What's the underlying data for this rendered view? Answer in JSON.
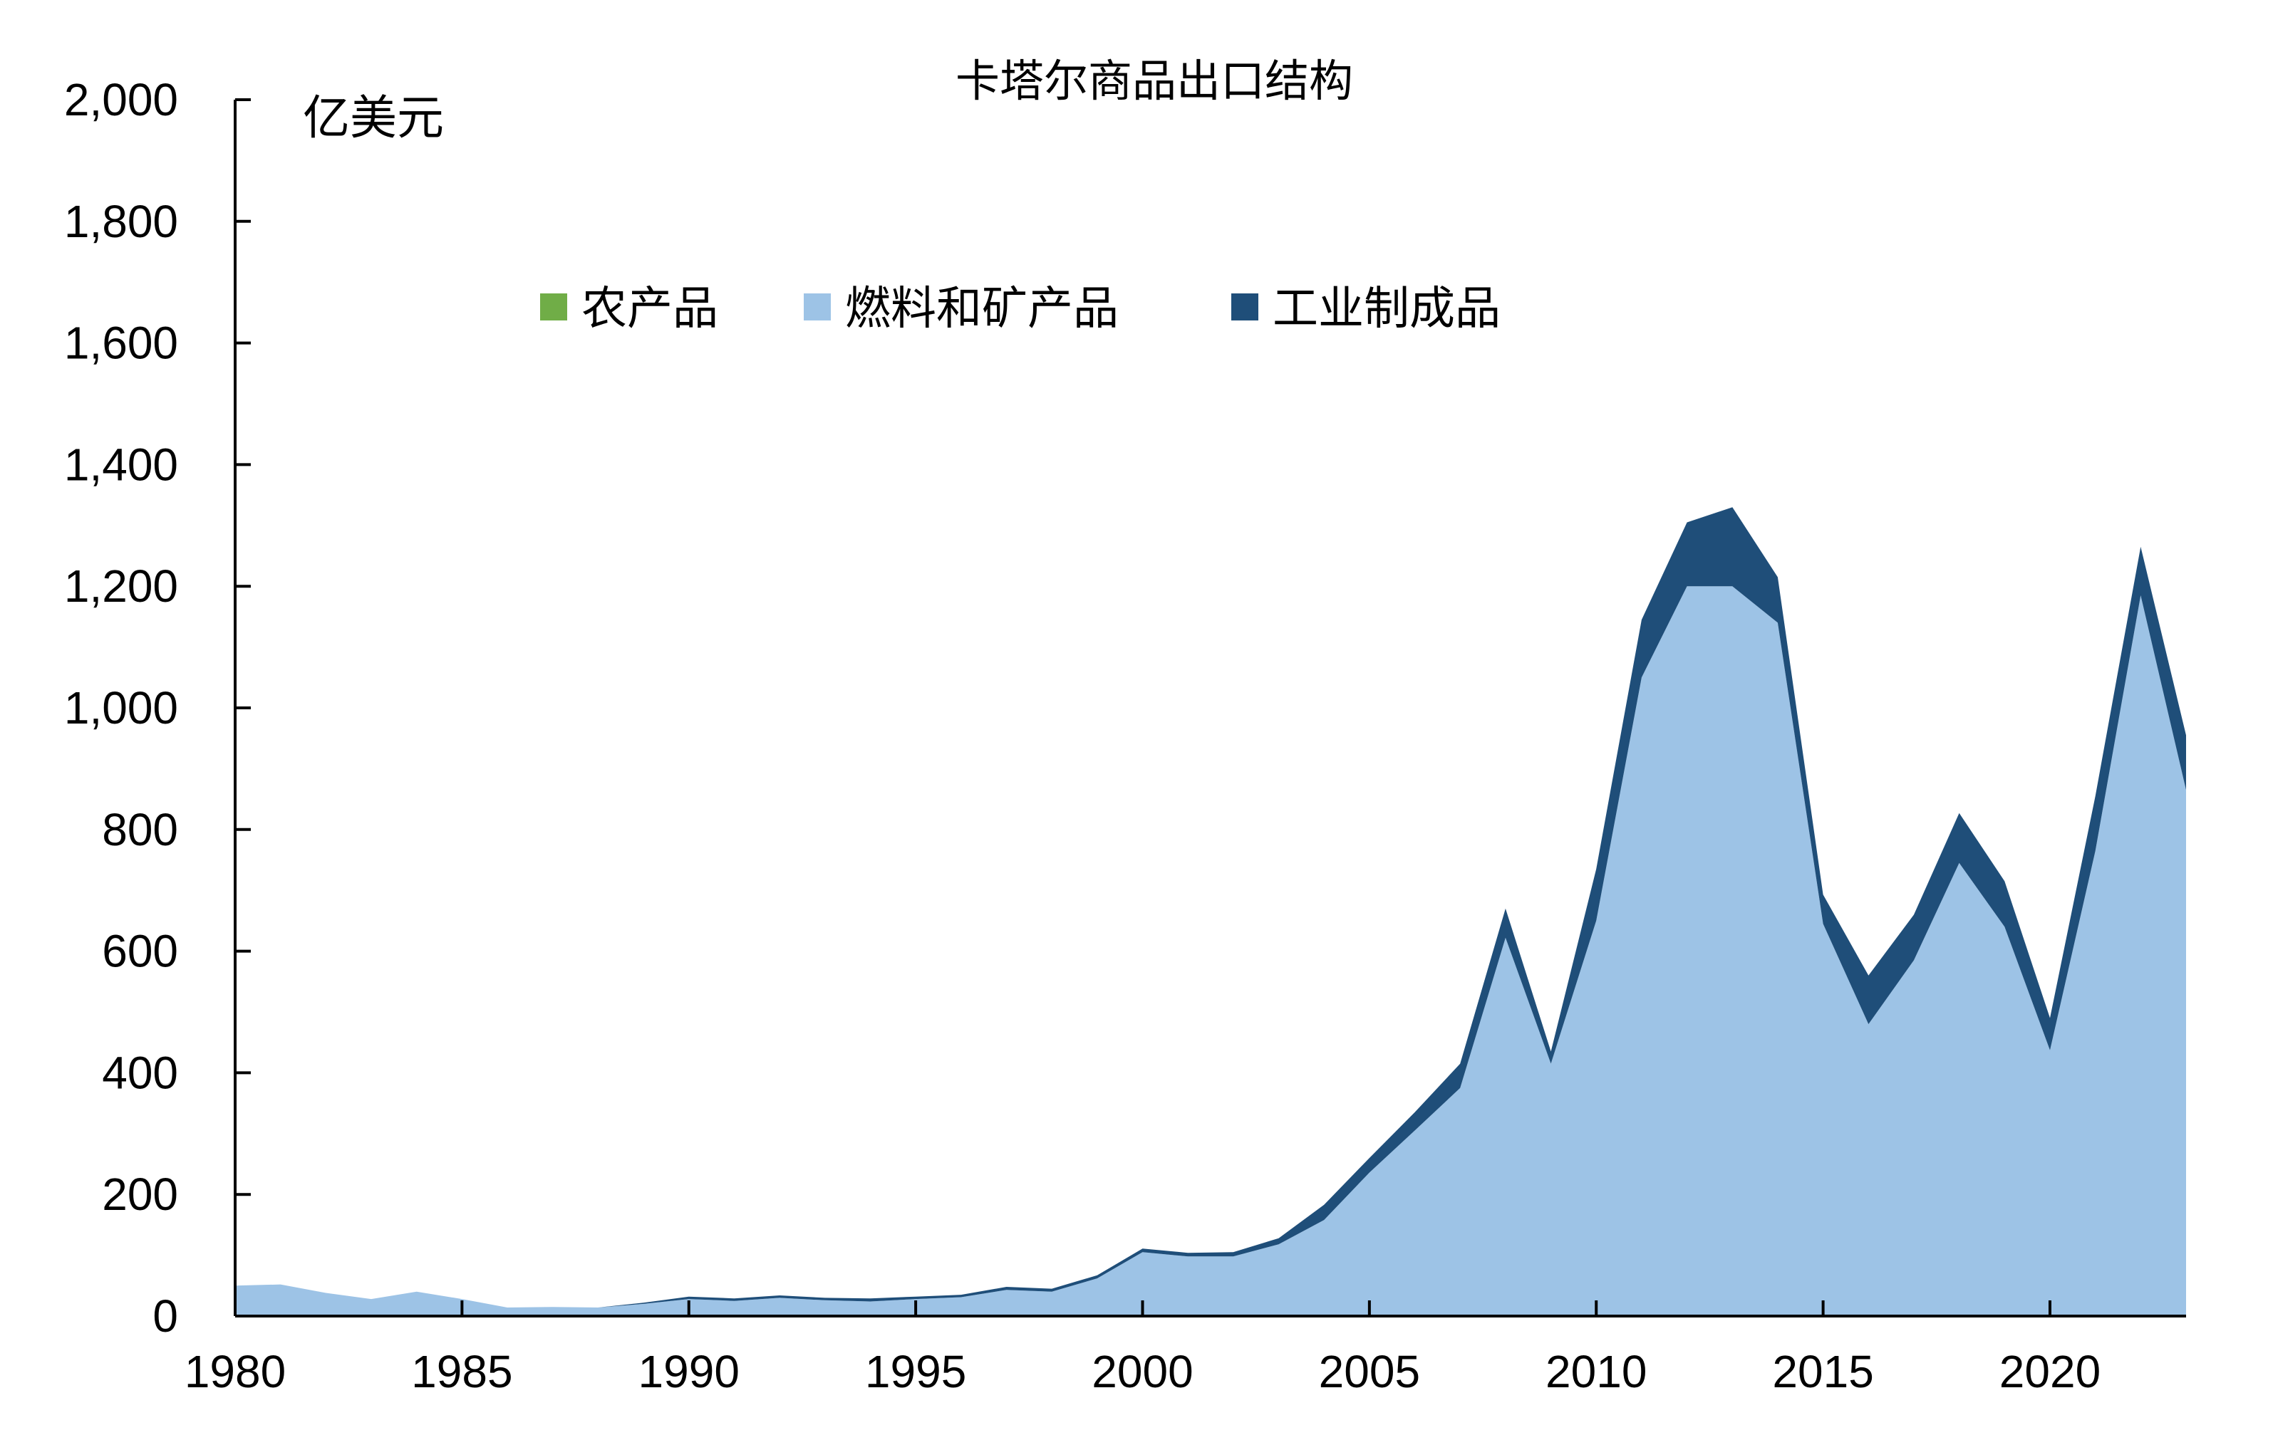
{
  "chart_data": {
    "type": "area",
    "stacked": true,
    "title": "卡塔尔商品出口结构",
    "ylabel": "亿美元",
    "xlabel": "",
    "xlim": [
      1980,
      2023
    ],
    "ylim": [
      0,
      2000
    ],
    "x_ticks": [
      "1980",
      "1985",
      "1990",
      "1995",
      "2000",
      "2005",
      "2010",
      "2015",
      "2020"
    ],
    "y_ticks": [
      "0",
      "200",
      "400",
      "600",
      "800",
      "1,000",
      "1,200",
      "1,400",
      "1,600",
      "1,800",
      "2,000"
    ],
    "grid": false,
    "legend_position": "top-center",
    "x": [
      1980,
      1981,
      1982,
      1983,
      1984,
      1985,
      1986,
      1987,
      1988,
      1989,
      1990,
      1991,
      1992,
      1993,
      1994,
      1995,
      1996,
      1997,
      1998,
      1999,
      2000,
      2001,
      2002,
      2003,
      2004,
      2005,
      2006,
      2007,
      2008,
      2009,
      2010,
      2011,
      2012,
      2013,
      2014,
      2015,
      2016,
      2017,
      2018,
      2019,
      2020,
      2021,
      2022,
      2023
    ],
    "series": [
      {
        "name": "农产品",
        "color": "#70AD47",
        "values": [
          0,
          0,
          0,
          0,
          0,
          0,
          0,
          0,
          0,
          0,
          0,
          0,
          0,
          0,
          0,
          0,
          0,
          0,
          0,
          0,
          0,
          0,
          0,
          0,
          0,
          0,
          0,
          0,
          0,
          0,
          0,
          0,
          0,
          0,
          0,
          0,
          0,
          0,
          0,
          0,
          0,
          0,
          0,
          0
        ]
      },
      {
        "name": "燃料和矿产品",
        "color": "#9DC3E6",
        "values": [
          50,
          52,
          38,
          28,
          40,
          28,
          14,
          15,
          14,
          20,
          28,
          25,
          30,
          26,
          24,
          28,
          31,
          43,
          40,
          62,
          105,
          98,
          98,
          118,
          158,
          236,
          305,
          375,
          622,
          415,
          650,
          1050,
          1200,
          1200,
          1140,
          645,
          480,
          585,
          745,
          640,
          437,
          765,
          1185,
          865
        ]
      },
      {
        "name": "工业制成品",
        "color": "#1F4E79",
        "values": [
          0,
          0,
          0,
          0,
          0,
          0,
          0,
          0,
          0,
          2,
          4,
          4,
          4,
          4,
          5,
          4,
          4,
          5,
          5,
          5,
          6,
          6,
          7,
          10,
          25,
          24,
          30,
          40,
          48,
          20,
          85,
          95,
          105,
          130,
          75,
          48,
          80,
          75,
          82,
          75,
          53,
          90,
          80,
          90
        ]
      }
    ]
  }
}
